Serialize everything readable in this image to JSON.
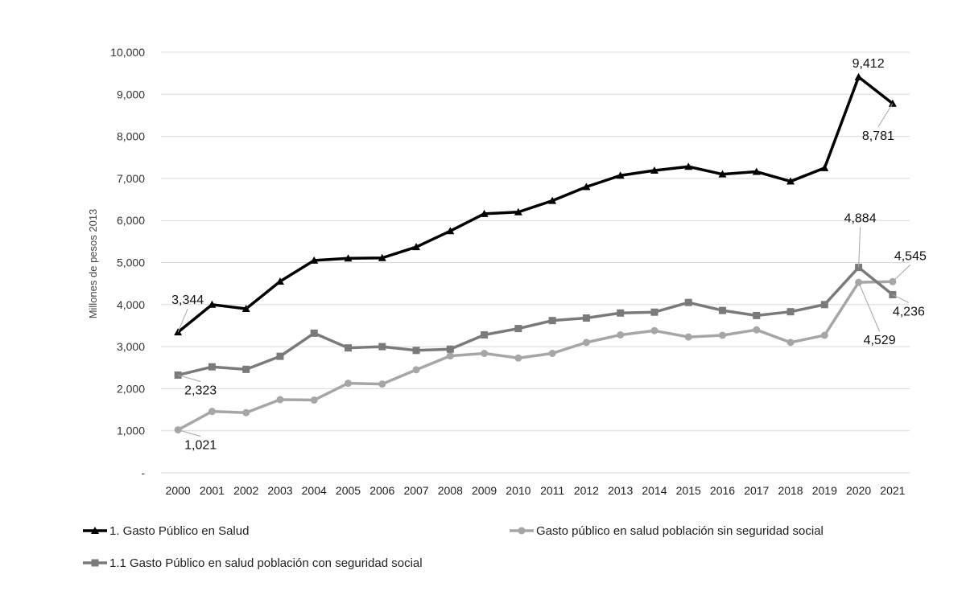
{
  "chart_data": {
    "type": "line",
    "ylabel": "Millones de pesos 2013",
    "ylim": [
      0,
      10000
    ],
    "yticks": [
      0,
      1000,
      2000,
      3000,
      4000,
      5000,
      6000,
      7000,
      8000,
      9000,
      10000
    ],
    "ytick_labels": [
      "-",
      "1,000",
      "2,000",
      "3,000",
      "4,000",
      "5,000",
      "6,000",
      "7,000",
      "8,000",
      "9,000",
      "10,000"
    ],
    "grid": "horizontal",
    "legend_position": "bottom",
    "x": [
      "2000",
      "2001",
      "2002",
      "2003",
      "2004",
      "2005",
      "2006",
      "2007",
      "2008",
      "2009",
      "2010",
      "2011",
      "2012",
      "2013",
      "2014",
      "2015",
      "2016",
      "2017",
      "2018",
      "2019",
      "2020",
      "2021"
    ],
    "series": [
      {
        "name": "1. Gasto Público en Salud",
        "color": "#000000",
        "marker": "triangle",
        "values": [
          3344,
          4000,
          3900,
          4550,
          5050,
          5100,
          5110,
          5370,
          5750,
          6160,
          6200,
          6470,
          6800,
          7070,
          7190,
          7280,
          7100,
          7160,
          6930,
          7250,
          9412,
          8781
        ]
      },
      {
        "name": "Gasto público en salud población sin seguridad social",
        "color": "#a6a6a6",
        "marker": "circle",
        "values": [
          1021,
          1460,
          1430,
          1740,
          1730,
          2130,
          2110,
          2450,
          2780,
          2840,
          2730,
          2840,
          3100,
          3280,
          3380,
          3230,
          3270,
          3400,
          3100,
          3270,
          4529,
          4545
        ]
      },
      {
        "name": "1.1 Gasto Público en salud población con seguridad social",
        "color": "#7a7a7a",
        "marker": "square",
        "values": [
          2323,
          2520,
          2460,
          2770,
          3320,
          2970,
          3000,
          2910,
          2940,
          3280,
          3430,
          3620,
          3680,
          3800,
          3820,
          4050,
          3860,
          3740,
          3830,
          4000,
          4884,
          4236
        ]
      }
    ],
    "data_labels": [
      {
        "series": 0,
        "index": 0,
        "text": "3,344"
      },
      {
        "series": 0,
        "index": 20,
        "text": "9,412"
      },
      {
        "series": 0,
        "index": 21,
        "text": "8,781"
      },
      {
        "series": 1,
        "index": 0,
        "text": "1,021"
      },
      {
        "series": 1,
        "index": 20,
        "text": "4,529"
      },
      {
        "series": 1,
        "index": 21,
        "text": "4,545"
      },
      {
        "series": 2,
        "index": 0,
        "text": "2,323"
      },
      {
        "series": 2,
        "index": 20,
        "text": "4,884"
      },
      {
        "series": 2,
        "index": 21,
        "text": "4,236"
      }
    ]
  }
}
